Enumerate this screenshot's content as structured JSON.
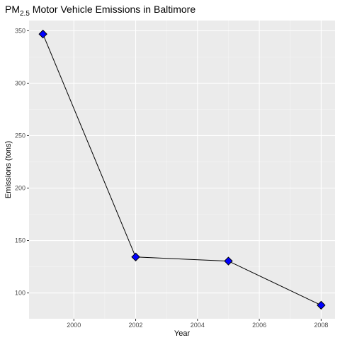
{
  "chart_data": {
    "type": "line",
    "title": {
      "prefix": "PM",
      "subscript": "2.5",
      "suffix": " Motor Vehicle Emissions in Baltimore"
    },
    "xlabel": "Year",
    "ylabel": "Emissions (tons)",
    "x": [
      1999,
      2002,
      2005,
      2008
    ],
    "series": [
      {
        "values": [
          346.8,
          134.3,
          130.4,
          88.3
        ]
      }
    ],
    "xlim": [
      1998.55,
      2008.45
    ],
    "ylim": [
      75.4,
      359.7
    ],
    "x_ticks": [
      2000,
      2002,
      2004,
      2006,
      2008
    ],
    "y_ticks": [
      100,
      150,
      200,
      250,
      300,
      350
    ],
    "grid": true,
    "legend": "none",
    "colors": {
      "panel": "#ebebeb",
      "grid_major": "#ffffff",
      "grid_minor": "#f5f5f5",
      "line": "#000000",
      "marker_fill": "#0000ff",
      "marker_stroke": "#000000",
      "tick_label": "#4d4d4d"
    }
  }
}
